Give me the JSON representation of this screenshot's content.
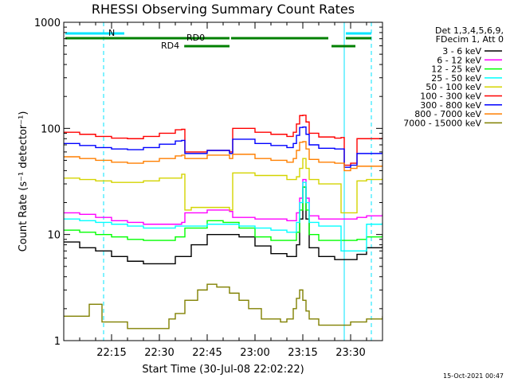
{
  "chart_data": {
    "type": "line",
    "title": "RHESSI Observing Summary Count Rates",
    "xlabel": "Start Time (30-Jul-08 22:02:22)",
    "ylabel": "Count Rate (s⁻¹ detector⁻¹)",
    "x_tick_labels": [
      "22:15",
      "22:30",
      "22:45",
      "23:00",
      "23:15",
      "23:30"
    ],
    "x_ticks_min": [
      15,
      30,
      45,
      60,
      75,
      90
    ],
    "xlim": [
      0,
      100
    ],
    "y_scale": "log",
    "ylim": [
      1,
      1000
    ],
    "y_tick_labels": [
      "1",
      "10",
      "100",
      "1000"
    ],
    "y_ticks": [
      1,
      10,
      100,
      1000
    ],
    "legend_header": [
      "Det 1,3,4,5,6,9,",
      "FDecim 1, Att 0"
    ],
    "legend_position": "right",
    "footer": "15-Oct-2021 00:47",
    "annotations": [
      {
        "label": "N",
        "color": "#00e5ff"
      },
      {
        "label": "RD0",
        "color": "#008000"
      },
      {
        "label": "RD4",
        "color": "#008000"
      }
    ],
    "series": [
      {
        "name": "3 - 6 keV",
        "color": "#000000",
        "x": [
          0,
          5,
          10,
          15,
          20,
          25,
          30,
          35,
          40,
          45,
          50,
          55,
          60,
          65,
          70,
          73,
          74,
          75,
          76,
          77,
          80,
          85,
          90,
          92,
          95,
          100
        ],
        "y": [
          8.5,
          7.5,
          7.0,
          6.2,
          5.6,
          5.3,
          5.3,
          6.2,
          8.0,
          10.0,
          10.0,
          9.5,
          7.8,
          6.6,
          6.2,
          8.0,
          14.0,
          28.0,
          14.0,
          7.5,
          6.2,
          5.8,
          5.8,
          6.5,
          7.5,
          7.8
        ]
      },
      {
        "name": "6 - 12 keV",
        "color": "#ff00ff",
        "x": [
          0,
          5,
          10,
          15,
          20,
          25,
          30,
          37,
          38,
          45,
          50,
          52,
          53,
          60,
          70,
          73,
          74,
          75,
          76,
          77,
          80,
          85,
          90,
          92,
          95,
          100
        ],
        "y": [
          16.0,
          15.5,
          14.5,
          13.5,
          13.0,
          12.5,
          12.5,
          13.0,
          16.0,
          17.0,
          17.0,
          16.5,
          14.5,
          14.0,
          13.5,
          16.0,
          22.0,
          33.0,
          22.0,
          15.0,
          14.0,
          14.0,
          14.0,
          14.5,
          15.0,
          15.5
        ]
      },
      {
        "name": "12 - 25 keV",
        "color": "#00ff00",
        "x": [
          0,
          5,
          10,
          15,
          20,
          25,
          30,
          35,
          38,
          45,
          50,
          55,
          60,
          65,
          70,
          73,
          74,
          75,
          76,
          77,
          80,
          85,
          90,
          92,
          95,
          100
        ],
        "y": [
          11.0,
          10.5,
          10.0,
          9.5,
          9.0,
          8.8,
          8.8,
          9.5,
          11.5,
          13.5,
          13.0,
          11.5,
          9.5,
          8.8,
          8.8,
          10.5,
          17.0,
          28.0,
          17.0,
          10.0,
          8.8,
          8.8,
          8.8,
          9.0,
          9.5,
          10.0
        ]
      },
      {
        "name": "25 - 50 keV",
        "color": "#00ffff",
        "x": [
          0,
          5,
          10,
          15,
          20,
          25,
          30,
          35,
          38,
          45,
          50,
          55,
          60,
          65,
          70,
          73,
          74,
          75,
          76,
          77,
          80,
          85,
          87,
          90,
          95,
          100
        ],
        "y": [
          14.0,
          13.5,
          13.0,
          12.5,
          12.0,
          11.5,
          11.5,
          12.0,
          12.0,
          12.5,
          12.5,
          12.0,
          11.5,
          11.0,
          10.5,
          13.0,
          20.0,
          31.0,
          20.0,
          13.0,
          12.0,
          12.0,
          7.0,
          7.0,
          12.5,
          13.0
        ]
      },
      {
        "name": "50 - 100 keV",
        "color": "#d4d400",
        "x": [
          0,
          5,
          10,
          15,
          20,
          25,
          30,
          37,
          38,
          40,
          45,
          48,
          52,
          53,
          60,
          70,
          73,
          74,
          75,
          76,
          77,
          80,
          85,
          87,
          90,
          92,
          95,
          100
        ],
        "y": [
          34.0,
          33.0,
          32.0,
          31.0,
          31.0,
          32.0,
          34.0,
          37.0,
          17.0,
          18.0,
          18.0,
          18.0,
          17.0,
          38.0,
          36.0,
          33.0,
          35.0,
          42.0,
          52.0,
          42.0,
          33.0,
          30.0,
          30.0,
          16.0,
          16.0,
          32.0,
          33.0,
          34.0
        ]
      },
      {
        "name": "100 - 300 keV",
        "color": "#ff0000",
        "x": [
          0,
          5,
          10,
          15,
          20,
          25,
          30,
          35,
          37,
          38,
          45,
          52,
          53,
          60,
          65,
          70,
          72,
          73,
          74,
          75,
          76,
          77,
          80,
          85,
          87,
          88,
          90,
          92,
          95,
          100
        ],
        "y": [
          92.0,
          88.0,
          84.0,
          81.0,
          80.0,
          84.0,
          90.0,
          97.0,
          98.0,
          60.0,
          62.0,
          60.0,
          100.0,
          92.0,
          88.0,
          84.0,
          92.0,
          110.0,
          132.0,
          133.0,
          115.0,
          90.0,
          83.0,
          81.0,
          82.0,
          45.0,
          47.0,
          80.0,
          80.0,
          82.0
        ]
      },
      {
        "name": "300 - 800 keV",
        "color": "#0000ff",
        "x": [
          0,
          5,
          10,
          15,
          20,
          25,
          30,
          35,
          37,
          38,
          45,
          52,
          53,
          60,
          65,
          70,
          72,
          73,
          74,
          75,
          76,
          77,
          80,
          85,
          87,
          88,
          90,
          92,
          95,
          100
        ],
        "y": [
          72.0,
          69.0,
          66.0,
          64.0,
          63.0,
          66.0,
          71.0,
          76.0,
          77.0,
          58.0,
          62.0,
          58.0,
          79.0,
          72.0,
          69.0,
          66.0,
          72.0,
          86.0,
          102.0,
          103.0,
          88.0,
          70.0,
          65.0,
          64.0,
          64.0,
          43.0,
          45.0,
          58.0,
          58.0,
          60.0
        ]
      },
      {
        "name": "800 - 7000 keV",
        "color": "#ff7f00",
        "x": [
          0,
          5,
          10,
          15,
          20,
          25,
          30,
          35,
          37,
          38,
          45,
          52,
          53,
          60,
          65,
          70,
          72,
          73,
          74,
          75,
          76,
          77,
          80,
          85,
          87,
          88,
          90,
          92,
          95,
          100
        ],
        "y": [
          54.0,
          52.0,
          50.0,
          48.0,
          47.0,
          49.0,
          52.0,
          55.0,
          56.0,
          52.0,
          56.0,
          52.0,
          57.0,
          52.0,
          50.0,
          48.0,
          52.0,
          62.0,
          74.0,
          75.0,
          64.0,
          51.0,
          48.0,
          47.0,
          47.0,
          40.0,
          42.0,
          44.0,
          44.0,
          45.0
        ]
      },
      {
        "name": "7000 - 15000 keV",
        "color": "#808000",
        "x": [
          0,
          5,
          8,
          12,
          20,
          30,
          33,
          35,
          38,
          42,
          45,
          48,
          52,
          55,
          58,
          62,
          68,
          70,
          72,
          73,
          74,
          75,
          76,
          77,
          80,
          85,
          90,
          95,
          100
        ],
        "y": [
          1.7,
          1.7,
          2.2,
          1.5,
          1.3,
          1.3,
          1.6,
          1.8,
          2.4,
          3.0,
          3.4,
          3.2,
          2.8,
          2.4,
          2.0,
          1.6,
          1.5,
          1.6,
          2.0,
          2.5,
          3.0,
          2.4,
          1.9,
          1.6,
          1.4,
          1.4,
          1.5,
          1.6,
          1.7
        ]
      }
    ]
  }
}
